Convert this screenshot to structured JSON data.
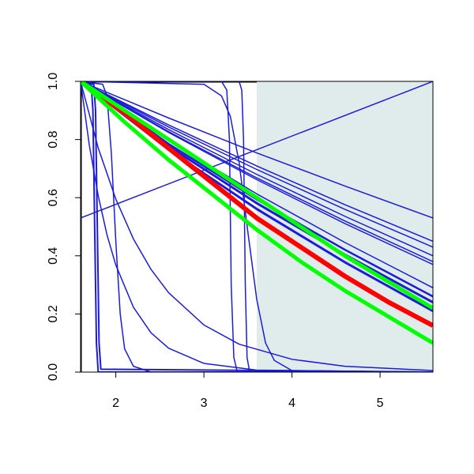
{
  "chart_data": {
    "type": "line",
    "xlim": [
      1.6,
      5.6
    ],
    "ylim": [
      0,
      1
    ],
    "xticks": [
      2,
      3,
      4,
      5
    ],
    "yticks": [
      {
        "value": 0,
        "label": "0.0"
      },
      {
        "value": 0.2,
        "label": "0.2"
      },
      {
        "value": 0.4,
        "label": "0.4"
      },
      {
        "value": 0.6,
        "label": "0.6"
      },
      {
        "value": 0.8,
        "label": "0.8"
      },
      {
        "value": 1,
        "label": "1.0"
      }
    ],
    "shade": {
      "x": [
        3.6,
        5.6
      ],
      "color": "#e0ecec"
    },
    "series": [
      {
        "color": "#000000",
        "width": 3,
        "x": [
          1.6,
          1.6,
          3.6
        ],
        "values": [
          0,
          1,
          1
        ]
      },
      {
        "color": "#1c1cd8",
        "width": 1.5,
        "x": [
          1.6,
          5.6
        ],
        "values": [
          0.53,
          1.0
        ]
      },
      {
        "color": "#1c1cd8",
        "width": 1.5,
        "x": [
          1.6,
          1.8,
          2.0,
          2.2,
          2.4,
          2.6,
          3.0,
          3.4,
          4.0,
          4.6,
          5.6
        ],
        "values": [
          1,
          0.771,
          0.595,
          0.458,
          0.353,
          0.273,
          0.162,
          0.096,
          0.044,
          0.02,
          0.0055
        ]
      },
      {
        "color": "#1c1cd8",
        "width": 1.5,
        "x": [
          1.6,
          1.7,
          1.8,
          1.9,
          2.0,
          2.2,
          2.4,
          2.6,
          3.0,
          3.6,
          5.6
        ],
        "values": [
          1,
          0.779,
          0.607,
          0.472,
          0.368,
          0.223,
          0.135,
          0.082,
          0.03,
          0.0067,
          0
        ]
      },
      {
        "color": "#1c1cd8",
        "width": 2,
        "x": [
          1.6,
          1.72,
          1.74,
          1.76,
          1.78,
          1.8,
          5.6
        ],
        "values": [
          1,
          0.99,
          0.9,
          0.5,
          0.1,
          0,
          0
        ]
      },
      {
        "color": "#1c1cd8",
        "width": 2,
        "x": [
          1.6,
          1.75,
          1.77,
          1.79,
          1.81,
          1.83,
          5.6
        ],
        "values": [
          1,
          0.99,
          0.9,
          0.5,
          0.1,
          0.01,
          0
        ]
      },
      {
        "color": "#1c1cd8",
        "width": 1.5,
        "x": [
          1.6,
          1.85,
          1.9,
          1.95,
          2.0,
          2.05,
          2.1,
          2.2,
          2.4,
          5.6
        ],
        "values": [
          1,
          0.99,
          0.95,
          0.75,
          0.45,
          0.2,
          0.08,
          0.02,
          0,
          0
        ]
      },
      {
        "color": "#1c1cd8",
        "width": 1.5,
        "x": [
          1.6,
          3.2,
          3.26,
          3.29,
          3.31,
          3.34,
          3.38,
          5.6
        ],
        "values": [
          1,
          1,
          0.97,
          0.8,
          0.3,
          0.05,
          0,
          0
        ]
      },
      {
        "color": "#1c1cd8",
        "width": 1.5,
        "x": [
          1.6,
          3.4,
          3.43,
          3.45,
          3.47,
          3.49,
          3.52,
          5.6
        ],
        "values": [
          1,
          1,
          0.97,
          0.8,
          0.3,
          0.05,
          0,
          0
        ]
      },
      {
        "color": "#1c1cd8",
        "width": 1.5,
        "x": [
          1.6,
          3.0,
          3.2,
          3.3,
          3.4,
          3.5,
          3.6,
          3.7,
          3.8,
          4.0,
          5.6
        ],
        "values": [
          1,
          0.99,
          0.95,
          0.88,
          0.72,
          0.48,
          0.25,
          0.1,
          0.04,
          0.005,
          0
        ]
      },
      {
        "color": "#1c1cd8",
        "width": 1.5,
        "x": [
          1.6,
          2.6,
          3.6,
          4.6,
          5.6
        ],
        "values": [
          1,
          0.874,
          0.754,
          0.64,
          0.53
        ]
      },
      {
        "color": "#1c1cd8",
        "width": 1.5,
        "x": [
          1.6,
          2.6,
          3.6,
          4.6,
          5.6
        ],
        "values": [
          1,
          0.85,
          0.709,
          0.576,
          0.45
        ]
      },
      {
        "color": "#1c1cd8",
        "width": 1.5,
        "x": [
          1.6,
          2.6,
          3.6,
          4.6,
          5.6
        ],
        "values": [
          1,
          0.843,
          0.697,
          0.56,
          0.43
        ]
      },
      {
        "color": "#1c1cd8",
        "width": 1.5,
        "x": [
          1.6,
          2.6,
          3.6,
          4.6,
          5.6
        ],
        "values": [
          1,
          0.834,
          0.68,
          0.536,
          0.4
        ]
      },
      {
        "color": "#1c1cd8",
        "width": 1.5,
        "x": [
          1.6,
          2.6,
          3.6,
          4.6,
          5.6
        ],
        "values": [
          1,
          0.827,
          0.668,
          0.52,
          0.38
        ]
      },
      {
        "color": "#1c1cd8",
        "width": 1.5,
        "x": [
          1.6,
          2.6,
          3.6,
          4.6,
          5.6
        ],
        "values": [
          1,
          0.824,
          0.662,
          0.511,
          0.37
        ]
      },
      {
        "color": "#1c1cd8",
        "width": 1.5,
        "x": [
          1.6,
          2.6,
          3.6,
          4.6,
          5.6
        ],
        "values": [
          1,
          0.796,
          0.613,
          0.446,
          0.29
        ]
      },
      {
        "color": "#1c1cd8",
        "width": 2.5,
        "x": [
          1.6,
          2.6,
          3.6,
          4.6,
          5.6
        ],
        "values": [
          1,
          0.785,
          0.594,
          0.421,
          0.26
        ]
      },
      {
        "color": "#1c1cd8",
        "width": 3,
        "x": [
          1.6,
          2.6,
          3.6,
          4.6,
          5.6
        ],
        "values": [
          1,
          0.777,
          0.581,
          0.404,
          0.24
        ]
      },
      {
        "color": "#1c1cd8",
        "width": 3,
        "x": [
          1.6,
          2.6,
          3.6,
          4.6,
          5.6
        ],
        "values": [
          1,
          0.765,
          0.561,
          0.378,
          0.21
        ]
      },
      {
        "color": "#ff0000",
        "width": 6,
        "x": [
          1.6,
          2.1,
          2.6,
          3.1,
          3.6,
          4.1,
          4.6,
          5.1,
          5.6
        ],
        "values": [
          1,
          0.89,
          0.77,
          0.65,
          0.53,
          0.43,
          0.33,
          0.24,
          0.16
        ]
      },
      {
        "color": "#00ff00",
        "width": 5,
        "x": [
          1.6,
          2.1,
          2.6,
          3.1,
          3.6,
          4.1,
          4.6,
          5.1,
          5.6
        ],
        "values": [
          1,
          0.9,
          0.8,
          0.7,
          0.6,
          0.5,
          0.4,
          0.31,
          0.22
        ]
      },
      {
        "color": "#00ff00",
        "width": 5,
        "x": [
          1.6,
          2.1,
          2.6,
          3.1,
          3.6,
          4.1,
          4.6,
          5.1,
          5.6
        ],
        "values": [
          1,
          0.86,
          0.73,
          0.61,
          0.49,
          0.38,
          0.28,
          0.19,
          0.1
        ]
      }
    ]
  }
}
